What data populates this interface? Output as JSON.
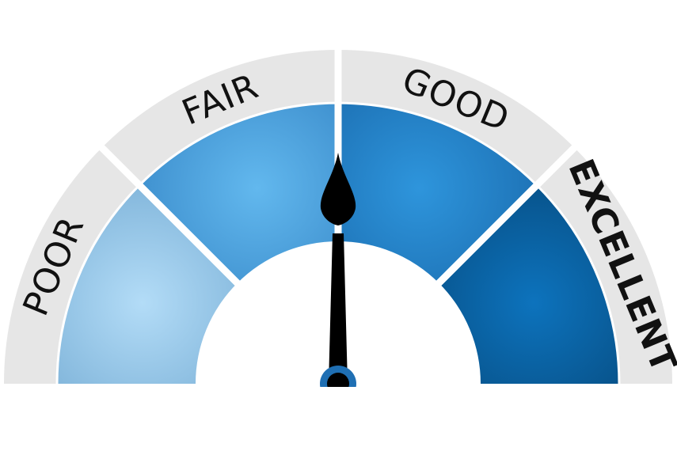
{
  "gauge": {
    "segments": [
      {
        "label": "POOR",
        "bold": false,
        "color_center": "#b3dcf7",
        "color_edge": "#7db2d8"
      },
      {
        "label": "FAIR",
        "bold": false,
        "color_center": "#62b8ee",
        "color_edge": "#3b8ccb"
      },
      {
        "label": "GOOD",
        "bold": false,
        "color_center": "#2e95dc",
        "color_edge": "#1c6fb2"
      },
      {
        "label": "EXCELLENT",
        "bold": true,
        "color_center": "#0d73bd",
        "color_edge": "#074f85"
      }
    ],
    "band_color": "#e6e6e6",
    "separator_color": "#ffffff",
    "needle_color": "#000000",
    "hub_ring_color": "#1f6fb3",
    "needle_level": 0.5
  }
}
